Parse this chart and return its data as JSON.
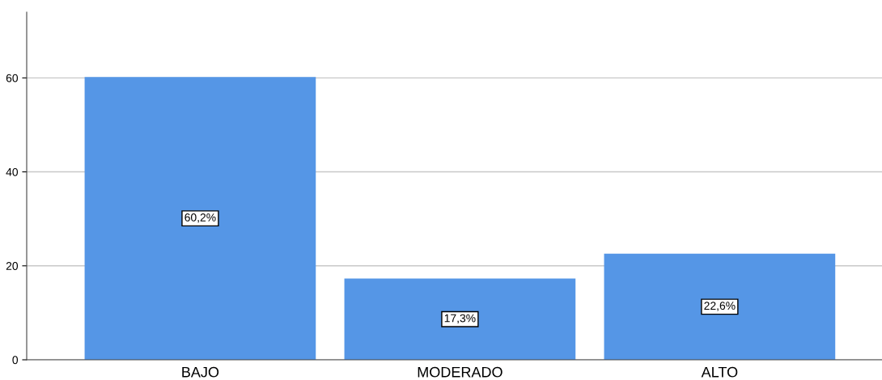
{
  "chart_data": {
    "type": "bar",
    "categories": [
      "BAJO",
      "MODERADO",
      "ALTO"
    ],
    "values": [
      60.2,
      17.3,
      22.6
    ],
    "value_labels": [
      "60,2%",
      "17,3%",
      "22,6%"
    ],
    "color": "#5596e6",
    "ylim": [
      0,
      74
    ],
    "yticks": [
      0,
      20,
      40,
      60
    ],
    "grid": "y"
  }
}
